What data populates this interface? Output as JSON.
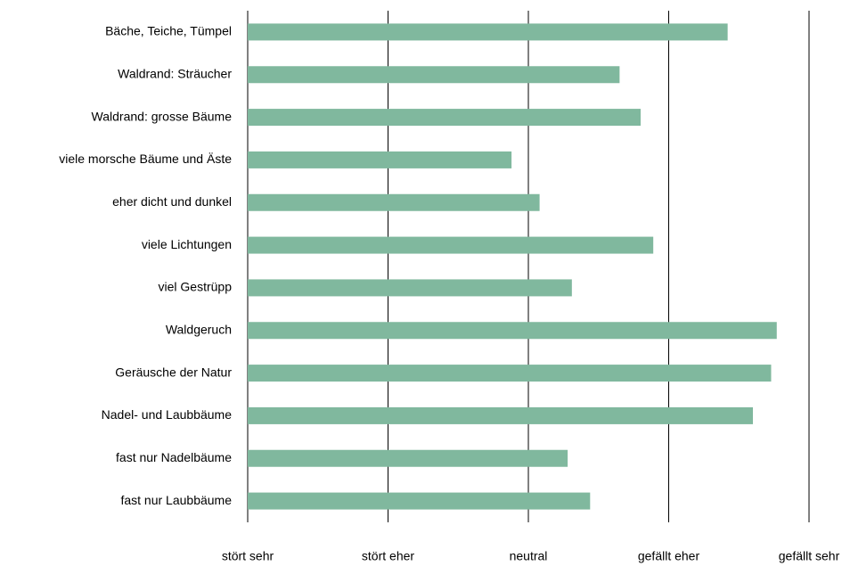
{
  "chart_data": {
    "type": "barh",
    "categories": [
      "Bäche, Teiche, Tümpel",
      "Waldrand: Sträucher",
      "Waldrand: grosse Bäume",
      "viele morsche Bäume und Äste",
      "eher dicht und dunkel",
      "viele Lichtungen",
      "viel Gestrüpp",
      "Waldgeruch",
      "Geräusche der Natur",
      "Nadel- und Laubbäume",
      "fast nur Nadelbäume",
      "fast nur Laubbäume"
    ],
    "values": [
      4.42,
      3.65,
      3.8,
      2.88,
      3.08,
      3.89,
      3.31,
      4.77,
      4.73,
      4.6,
      3.28,
      3.44
    ],
    "color": "#80b89e",
    "xlim": [
      1,
      5
    ],
    "xticks": [
      {
        "value": 1,
        "label": "stört sehr"
      },
      {
        "value": 2,
        "label": "stört eher"
      },
      {
        "value": 3,
        "label": "neutral"
      },
      {
        "value": 4,
        "label": "gefällt eher"
      },
      {
        "value": 5,
        "label": "gefällt sehr"
      }
    ],
    "grid": true
  }
}
